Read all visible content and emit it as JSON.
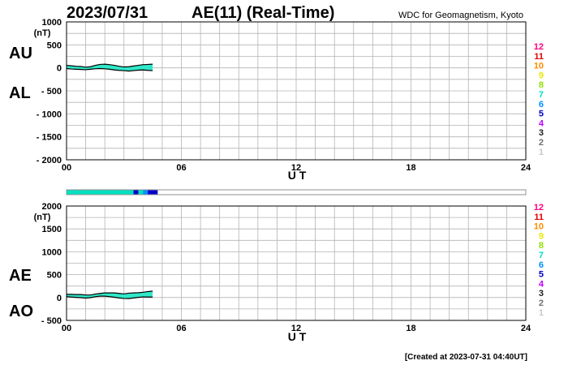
{
  "header": {
    "date": "2023/07/31",
    "title": "AE(11) (Real-Time)",
    "source": "WDC for Geomagnetism, Kyoto"
  },
  "footer": {
    "created": "[Created at 2023-07-31 04:40UT]"
  },
  "station_count_legend": {
    "values": [
      "12",
      "11",
      "10",
      "9",
      "8",
      "7",
      "6",
      "5",
      "4",
      "3",
      "2",
      "1"
    ],
    "colors": [
      "#ff0080",
      "#e00000",
      "#ff8c00",
      "#e8e800",
      "#90e000",
      "#00e0c0",
      "#0090ff",
      "#0000c8",
      "#c000ff",
      "#202020",
      "#707070",
      "#c8c8c8"
    ]
  },
  "chart_data": [
    {
      "type": "area",
      "name": "au-al-panel",
      "series_labels": [
        "AU",
        "AL"
      ],
      "ylabel_unit": "(nT)",
      "ylim": [
        -2000,
        1000
      ],
      "y_ticks": [
        1000,
        500,
        0,
        -500,
        -1000,
        -1500,
        -2000
      ],
      "y_tick_labels": [
        "1000",
        "500",
        "0",
        "- 500",
        "- 1000",
        "- 1500",
        "- 2000"
      ],
      "xlabel": "U T",
      "xlim": [
        0,
        24
      ],
      "x_ticks": [
        0,
        6,
        12,
        18,
        24
      ],
      "x_tick_labels": [
        "00",
        "06",
        "12",
        "18",
        "24"
      ],
      "grid": true,
      "hours": [
        0.0,
        0.25,
        0.5,
        0.75,
        1.0,
        1.25,
        1.5,
        1.75,
        2.0,
        2.25,
        2.5,
        2.75,
        3.0,
        3.25,
        3.5,
        3.75,
        4.0,
        4.25,
        4.5
      ],
      "au": [
        55,
        45,
        35,
        30,
        15,
        25,
        55,
        75,
        80,
        70,
        55,
        35,
        20,
        25,
        40,
        55,
        70,
        75,
        80
      ],
      "al": [
        -15,
        -25,
        -30,
        -35,
        -40,
        -30,
        -20,
        -15,
        -20,
        -30,
        -45,
        -55,
        -60,
        -70,
        -60,
        -50,
        -45,
        -55,
        -60
      ]
    },
    {
      "type": "area",
      "name": "ae-ao-panel",
      "series_labels": [
        "AE",
        "AO"
      ],
      "ylabel_unit": "(nT)",
      "ylim": [
        -500,
        2000
      ],
      "y_ticks": [
        2000,
        1500,
        1000,
        500,
        0,
        -500
      ],
      "y_tick_labels": [
        "2000",
        "1500",
        "1000",
        "500",
        "0",
        "- 500"
      ],
      "xlabel": "U T",
      "xlim": [
        0,
        24
      ],
      "x_ticks": [
        0,
        6,
        12,
        18,
        24
      ],
      "x_tick_labels": [
        "00",
        "06",
        "12",
        "18",
        "24"
      ],
      "grid": true,
      "hours": [
        0.0,
        0.25,
        0.5,
        0.75,
        1.0,
        1.25,
        1.5,
        1.75,
        2.0,
        2.25,
        2.5,
        2.75,
        3.0,
        3.25,
        3.5,
        3.75,
        4.0,
        4.25,
        4.5
      ],
      "ae": [
        70,
        70,
        65,
        65,
        55,
        55,
        75,
        90,
        100,
        100,
        100,
        90,
        80,
        95,
        100,
        105,
        115,
        130,
        140
      ],
      "ao": [
        20,
        10,
        3,
        -3,
        -13,
        -3,
        18,
        30,
        30,
        20,
        5,
        -10,
        -20,
        -23,
        -10,
        3,
        13,
        10,
        10
      ]
    }
  ],
  "station_bar": {
    "hour_width": 0.25,
    "counts": [
      7,
      7,
      7,
      7,
      7,
      7,
      7,
      7,
      7,
      7,
      7,
      7,
      7,
      7,
      5,
      7,
      6,
      5,
      5
    ]
  }
}
